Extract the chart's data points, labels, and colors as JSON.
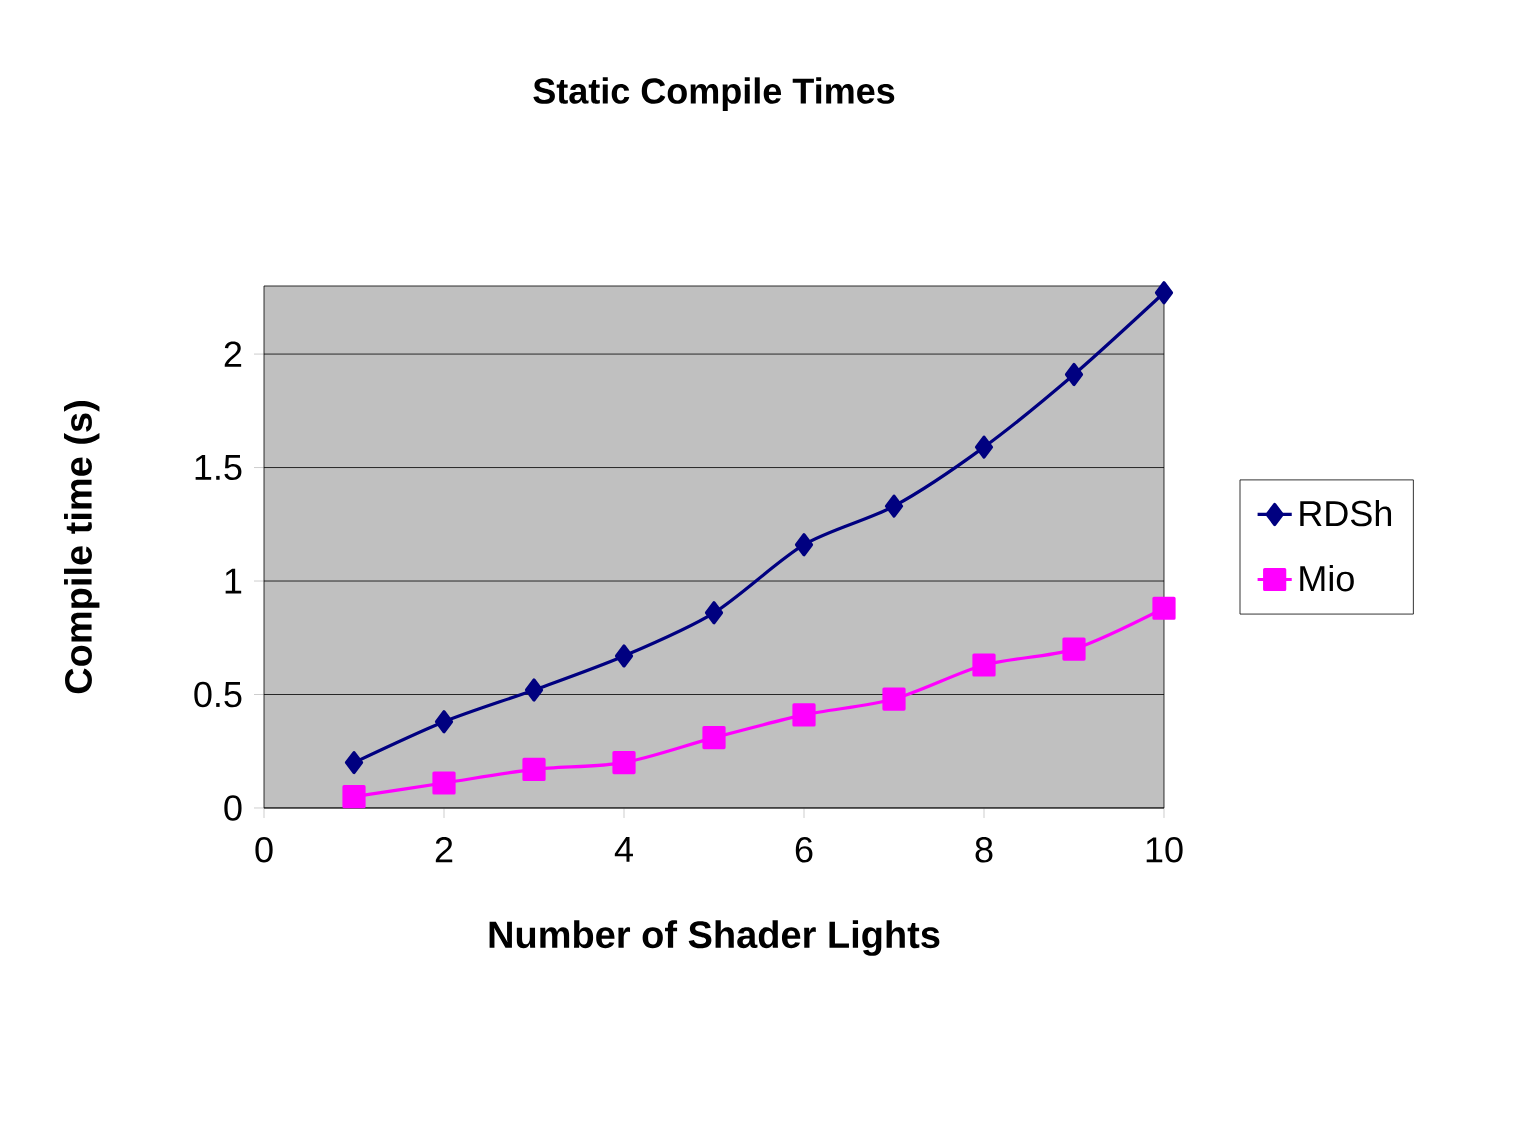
{
  "chart_data": {
    "type": "line",
    "title": "Static Compile Times",
    "xlabel": "Number of Shader Lights",
    "ylabel": "Compile time (s)",
    "x": [
      1,
      2,
      3,
      4,
      5,
      6,
      7,
      8,
      9,
      10
    ],
    "series": [
      {
        "name": "RDSh",
        "color": "#000080",
        "marker": "diamond",
        "values": [
          0.2,
          0.38,
          0.52,
          0.67,
          0.86,
          1.16,
          1.33,
          1.59,
          1.91,
          2.27
        ]
      },
      {
        "name": "Mio",
        "color": "#ff00ff",
        "marker": "square",
        "values": [
          0.05,
          0.11,
          0.17,
          0.2,
          0.31,
          0.41,
          0.48,
          0.63,
          0.7,
          0.88
        ]
      }
    ],
    "xlim": [
      0,
      10
    ],
    "xticks": [
      0,
      2,
      4,
      6,
      8,
      10
    ],
    "ylim": [
      0,
      2.3
    ],
    "yticks": [
      0,
      0.5,
      1,
      1.5,
      2
    ],
    "grid": "y",
    "legend": "right"
  }
}
